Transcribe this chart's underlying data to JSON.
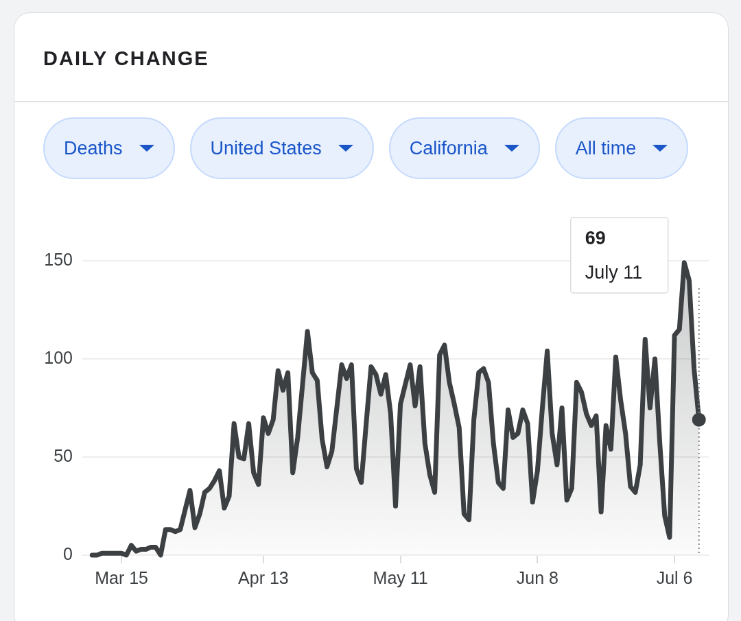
{
  "chart_data": {
    "type": "area",
    "title": "DAILY CHANGE",
    "annotations": [
      "Deaths",
      "United States",
      "California",
      "All time",
      "69",
      "July 11"
    ],
    "ref_lines": [
      {
        "axis": "x",
        "value": "--07-11",
        "color": "#80868b",
        "line_style": "dotted"
      }
    ],
    "x": [
      "--03-09",
      "--03-10",
      "--03-11",
      "--03-12",
      "--03-13",
      "--03-14",
      "--03-15",
      "--03-16",
      "--03-17",
      "--03-18",
      "--03-19",
      "--03-20",
      "--03-21",
      "--03-22",
      "--03-23",
      "--03-24",
      "--03-25",
      "--03-26",
      "--03-27",
      "--03-28",
      "--03-29",
      "--03-30",
      "--03-31",
      "--04-01",
      "--04-02",
      "--04-03",
      "--04-04",
      "--04-05",
      "--04-06",
      "--04-07",
      "--04-08",
      "--04-09",
      "--04-10",
      "--04-11",
      "--04-12",
      "--04-13",
      "--04-14",
      "--04-15",
      "--04-16",
      "--04-17",
      "--04-18",
      "--04-19",
      "--04-20",
      "--04-21",
      "--04-22",
      "--04-23",
      "--04-24",
      "--04-25",
      "--04-26",
      "--04-27",
      "--04-28",
      "--04-29",
      "--04-30",
      "--05-01",
      "--05-02",
      "--05-03",
      "--05-04",
      "--05-05",
      "--05-06",
      "--05-07",
      "--05-08",
      "--05-09",
      "--05-10",
      "--05-11",
      "--05-12",
      "--05-13",
      "--05-14",
      "--05-15",
      "--05-16",
      "--05-17",
      "--05-18",
      "--05-19",
      "--05-20",
      "--05-21",
      "--05-22",
      "--05-23",
      "--05-24",
      "--05-25",
      "--05-26",
      "--05-27",
      "--05-28",
      "--05-29",
      "--05-30",
      "--05-31",
      "--06-01",
      "--06-02",
      "--06-03",
      "--06-04",
      "--06-05",
      "--06-06",
      "--06-07",
      "--06-08",
      "--06-09",
      "--06-10",
      "--06-11",
      "--06-12",
      "--06-13",
      "--06-14",
      "--06-15",
      "--06-16",
      "--06-17",
      "--06-18",
      "--06-19",
      "--06-20",
      "--06-21",
      "--06-22",
      "--06-23",
      "--06-24",
      "--06-25",
      "--06-26",
      "--06-27",
      "--06-28",
      "--06-29",
      "--06-30",
      "--07-01",
      "--07-02",
      "--07-03",
      "--07-04",
      "--07-05",
      "--07-06",
      "--07-07",
      "--07-08",
      "--07-09",
      "--07-10",
      "--07-11"
    ],
    "series": [
      {
        "color": "#3c4043",
        "values": [
          0,
          0,
          1,
          1,
          1,
          1,
          1,
          0,
          5,
          2,
          3,
          3,
          4,
          4,
          0,
          13,
          13,
          12,
          13,
          23,
          33,
          14,
          21,
          32,
          34,
          38,
          43,
          24,
          30,
          67,
          50,
          49,
          67,
          42,
          36,
          70,
          62,
          69,
          94,
          84,
          93,
          42,
          60,
          87,
          114,
          93,
          89,
          59,
          45,
          53,
          75,
          97,
          90,
          97,
          44,
          37,
          67,
          96,
          92,
          82,
          92,
          72,
          25,
          77,
          87,
          97,
          76,
          96,
          57,
          41,
          32,
          102,
          107,
          88,
          77,
          65,
          21,
          18,
          69,
          93,
          95,
          88,
          57,
          37,
          34,
          74,
          60,
          62,
          74,
          67,
          27,
          43,
          75,
          104,
          62,
          46,
          75,
          28,
          34,
          88,
          83,
          72,
          66,
          71,
          22,
          66,
          54,
          101,
          79,
          62,
          35,
          32,
          46,
          110,
          75,
          100,
          57,
          20,
          9,
          112,
          115,
          149,
          140,
          95,
          69
        ]
      }
    ],
    "xlim": [
      "--03-07",
      "--07-13"
    ],
    "xticks": [
      {
        "value": "--03-15",
        "label": "Mar 15"
      },
      {
        "value": "--04-13",
        "label": "Apr 13"
      },
      {
        "value": "--05-11",
        "label": "May 11"
      },
      {
        "value": "--06-08",
        "label": "Jun 8"
      },
      {
        "value": "--07-06",
        "label": "Jul 6"
      }
    ],
    "ylim": [
      0,
      150
    ],
    "yticks": [
      0,
      50,
      100,
      150
    ],
    "grid": "y",
    "legend": false,
    "marker": "none",
    "line_style": "solid"
  }
}
